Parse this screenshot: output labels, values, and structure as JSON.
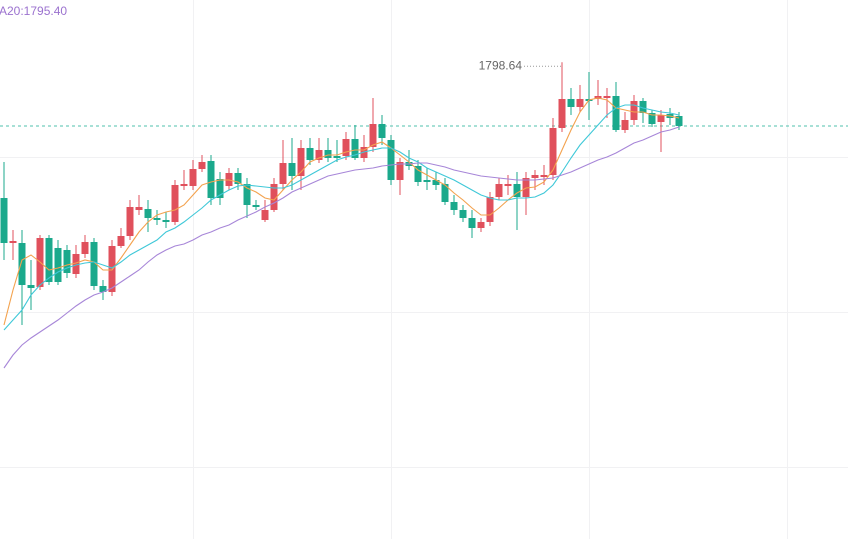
{
  "chart_data": {
    "type": "candlestick",
    "legend_text": "A20:1795.40",
    "legend_color": "#9b72cf",
    "up_color": "#e0505c",
    "down_color": "#1ba98c",
    "price_line_color": "#4fc1ad",
    "ylim": [
      1774.8,
      1801.75
    ],
    "open": [
      1791.85,
      1789.6,
      1789.6,
      1787.5,
      1787.4,
      1789.85,
      1789.35,
      1789.25,
      1788.05,
      1789.05,
      1789.65,
      1787.45,
      1787.15,
      1789.45,
      1789.95,
      1791.25,
      1791.3,
      1790.85,
      1790.75,
      1790.65,
      1792.45,
      1792.45,
      1793.3,
      1793.7,
      1792.8,
      1792.45,
      1793.1,
      1792.55,
      1791.5,
      1790.75,
      1791.25,
      1792.55,
      1793.6,
      1792.95,
      1794.35,
      1793.75,
      1794.25,
      1793.95,
      1793.95,
      1794.8,
      1793.85,
      1794.4,
      1795.55,
      1794.75,
      1792.75,
      1793.65,
      1793.45,
      1792.75,
      1792.75,
      1792.55,
      1791.65,
      1791.25,
      1790.85,
      1790.35,
      1790.65,
      1791.9,
      1792.45,
      1792.55,
      1791.9,
      1792.85,
      1792.9,
      1793.0,
      1795.35,
      1796.8,
      1796.4,
      1796.8,
      1796.8,
      1796.85,
      1796.95,
      1795.25,
      1795.75,
      1796.7,
      1796.1,
      1795.65,
      1796.05,
      1795.95
    ],
    "close": [
      1789.6,
      1789.7,
      1787.5,
      1787.35,
      1789.85,
      1787.65,
      1787.65,
      1788.1,
      1789.05,
      1789.65,
      1787.45,
      1787.15,
      1789.45,
      1789.95,
      1791.4,
      1791.4,
      1790.85,
      1790.75,
      1790.65,
      1792.5,
      1792.55,
      1793.3,
      1793.65,
      1791.85,
      1791.85,
      1793.1,
      1792.55,
      1791.5,
      1791.4,
      1791.25,
      1792.55,
      1793.6,
      1792.95,
      1794.35,
      1793.75,
      1794.25,
      1793.85,
      1793.85,
      1794.8,
      1793.85,
      1794.4,
      1795.55,
      1794.85,
      1792.75,
      1793.65,
      1793.45,
      1792.65,
      1792.65,
      1792.5,
      1791.65,
      1791.25,
      1790.85,
      1790.35,
      1790.65,
      1791.9,
      1792.55,
      1792.55,
      1791.9,
      1792.85,
      1793.0,
      1793.0,
      1795.35,
      1796.8,
      1796.4,
      1796.8,
      1796.7,
      1796.95,
      1796.95,
      1795.25,
      1795.75,
      1796.7,
      1796.1,
      1795.55,
      1796.0,
      1795.85,
      1795.45
    ],
    "high": [
      1793.65,
      1790.25,
      1790.25,
      1788.75,
      1790.0,
      1790.0,
      1789.75,
      1789.5,
      1789.5,
      1790.0,
      1789.85,
      1787.75,
      1789.75,
      1790.35,
      1791.75,
      1792.0,
      1791.75,
      1791.25,
      1791.15,
      1792.75,
      1793.25,
      1793.75,
      1794.0,
      1794.0,
      1793.15,
      1793.35,
      1793.35,
      1792.85,
      1791.75,
      1791.75,
      1792.85,
      1794.75,
      1794.85,
      1794.75,
      1794.85,
      1794.85,
      1794.85,
      1794.75,
      1795.15,
      1795.5,
      1795.0,
      1796.85,
      1796.0,
      1795.0,
      1793.85,
      1794.25,
      1793.75,
      1793.35,
      1793.15,
      1792.85,
      1792.0,
      1791.5,
      1791.25,
      1790.85,
      1792.15,
      1792.85,
      1793.0,
      1793.15,
      1793.15,
      1793.25,
      1793.5,
      1795.85,
      1798.64,
      1797.35,
      1797.5,
      1798.15,
      1797.75,
      1797.35,
      1797.65,
      1796.15,
      1797.0,
      1796.85,
      1796.25,
      1796.25,
      1796.35,
      1796.15
    ],
    "low": [
      1788.75,
      1788.75,
      1785.5,
      1786.25,
      1787.25,
      1787.5,
      1787.5,
      1787.85,
      1787.85,
      1788.85,
      1787.25,
      1786.75,
      1786.95,
      1789.35,
      1789.75,
      1791.0,
      1790.15,
      1790.5,
      1790.35,
      1790.5,
      1792.25,
      1792.25,
      1793.15,
      1791.5,
      1791.5,
      1792.25,
      1792.25,
      1790.85,
      1791.25,
      1790.65,
      1791.15,
      1792.25,
      1792.25,
      1792.25,
      1793.5,
      1793.6,
      1793.65,
      1793.65,
      1793.75,
      1793.75,
      1793.65,
      1794.15,
      1794.5,
      1792.5,
      1792.0,
      1793.25,
      1792.45,
      1792.25,
      1792.25,
      1791.5,
      1791.0,
      1790.65,
      1789.85,
      1790.15,
      1790.45,
      1791.75,
      1792.0,
      1790.25,
      1791.0,
      1792.25,
      1792.5,
      1792.75,
      1795.15,
      1796.0,
      1796.15,
      1795.75,
      1796.5,
      1795.85,
      1795.15,
      1795.1,
      1795.5,
      1795.6,
      1795.4,
      1794.15,
      1795.5,
      1795.25
    ],
    "series": [
      {
        "color": "#f3a24e",
        "values": [
          1785.5,
          1787.25,
          1788.75,
          1789.0,
          1788.65,
          1788.25,
          1788.35,
          1788.5,
          1788.6,
          1788.75,
          1788.65,
          1788.25,
          1788.25,
          1788.85,
          1789.5,
          1790.15,
          1790.65,
          1791.0,
          1791.15,
          1791.25,
          1791.5,
          1792.0,
          1792.5,
          1792.65,
          1792.75,
          1792.75,
          1792.65,
          1792.35,
          1792.15,
          1791.85,
          1791.75,
          1792.25,
          1792.75,
          1793.15,
          1793.65,
          1793.85,
          1794.0,
          1794.0,
          1794.15,
          1794.25,
          1794.25,
          1794.5,
          1794.65,
          1794.35,
          1794.0,
          1793.65,
          1793.25,
          1793.0,
          1792.75,
          1792.5,
          1792.1,
          1791.75,
          1791.35,
          1791.0,
          1791.0,
          1791.35,
          1791.75,
          1792.1,
          1792.35,
          1792.4,
          1792.65,
          1793.25,
          1794.25,
          1795.25,
          1796.15,
          1796.75,
          1796.85,
          1796.75,
          1796.35,
          1796.25,
          1796.15,
          1796.15,
          1796.0,
          1796.0,
          1795.95,
          1795.85
        ]
      },
      {
        "color": "#3fc8d8",
        "values": [
          1785.25,
          1785.75,
          1786.25,
          1787.0,
          1787.5,
          1787.85,
          1788.15,
          1788.35,
          1788.5,
          1788.6,
          1788.65,
          1788.5,
          1788.35,
          1788.65,
          1789.0,
          1789.25,
          1789.5,
          1789.75,
          1790.15,
          1790.35,
          1790.65,
          1791.0,
          1791.35,
          1791.75,
          1792.0,
          1792.25,
          1792.45,
          1792.5,
          1792.45,
          1792.4,
          1792.35,
          1792.35,
          1792.5,
          1792.75,
          1793.0,
          1793.25,
          1793.5,
          1793.75,
          1793.9,
          1794.0,
          1794.15,
          1794.25,
          1794.35,
          1794.35,
          1794.15,
          1793.85,
          1793.65,
          1793.35,
          1793.15,
          1792.95,
          1792.75,
          1792.5,
          1792.25,
          1792.0,
          1791.85,
          1791.75,
          1791.75,
          1791.85,
          1791.85,
          1791.9,
          1792.1,
          1792.5,
          1793.15,
          1793.85,
          1794.5,
          1795.0,
          1795.5,
          1796.0,
          1796.35,
          1796.5,
          1796.5,
          1796.35,
          1796.25,
          1796.15,
          1796.1,
          1796.0
        ]
      },
      {
        "color": "#a786d8",
        "values": [
          1783.35,
          1784.0,
          1784.5,
          1784.85,
          1785.15,
          1785.45,
          1785.75,
          1786.1,
          1786.45,
          1786.75,
          1787.0,
          1787.15,
          1787.35,
          1787.65,
          1787.95,
          1788.25,
          1788.65,
          1789.0,
          1789.25,
          1789.45,
          1789.55,
          1789.75,
          1790.0,
          1790.15,
          1790.35,
          1790.5,
          1790.75,
          1790.95,
          1791.15,
          1791.4,
          1791.6,
          1791.85,
          1792.15,
          1792.35,
          1792.55,
          1792.75,
          1792.95,
          1793.05,
          1793.15,
          1793.25,
          1793.3,
          1793.35,
          1793.45,
          1793.5,
          1793.55,
          1793.55,
          1793.6,
          1793.6,
          1793.5,
          1793.4,
          1793.25,
          1793.15,
          1793.05,
          1792.95,
          1792.9,
          1792.85,
          1792.8,
          1792.75,
          1792.75,
          1792.75,
          1792.8,
          1792.85,
          1793.0,
          1793.15,
          1793.35,
          1793.55,
          1793.75,
          1793.9,
          1794.1,
          1794.35,
          1794.6,
          1794.75,
          1794.95,
          1795.15,
          1795.25,
          1795.4
        ]
      }
    ]
  }
}
